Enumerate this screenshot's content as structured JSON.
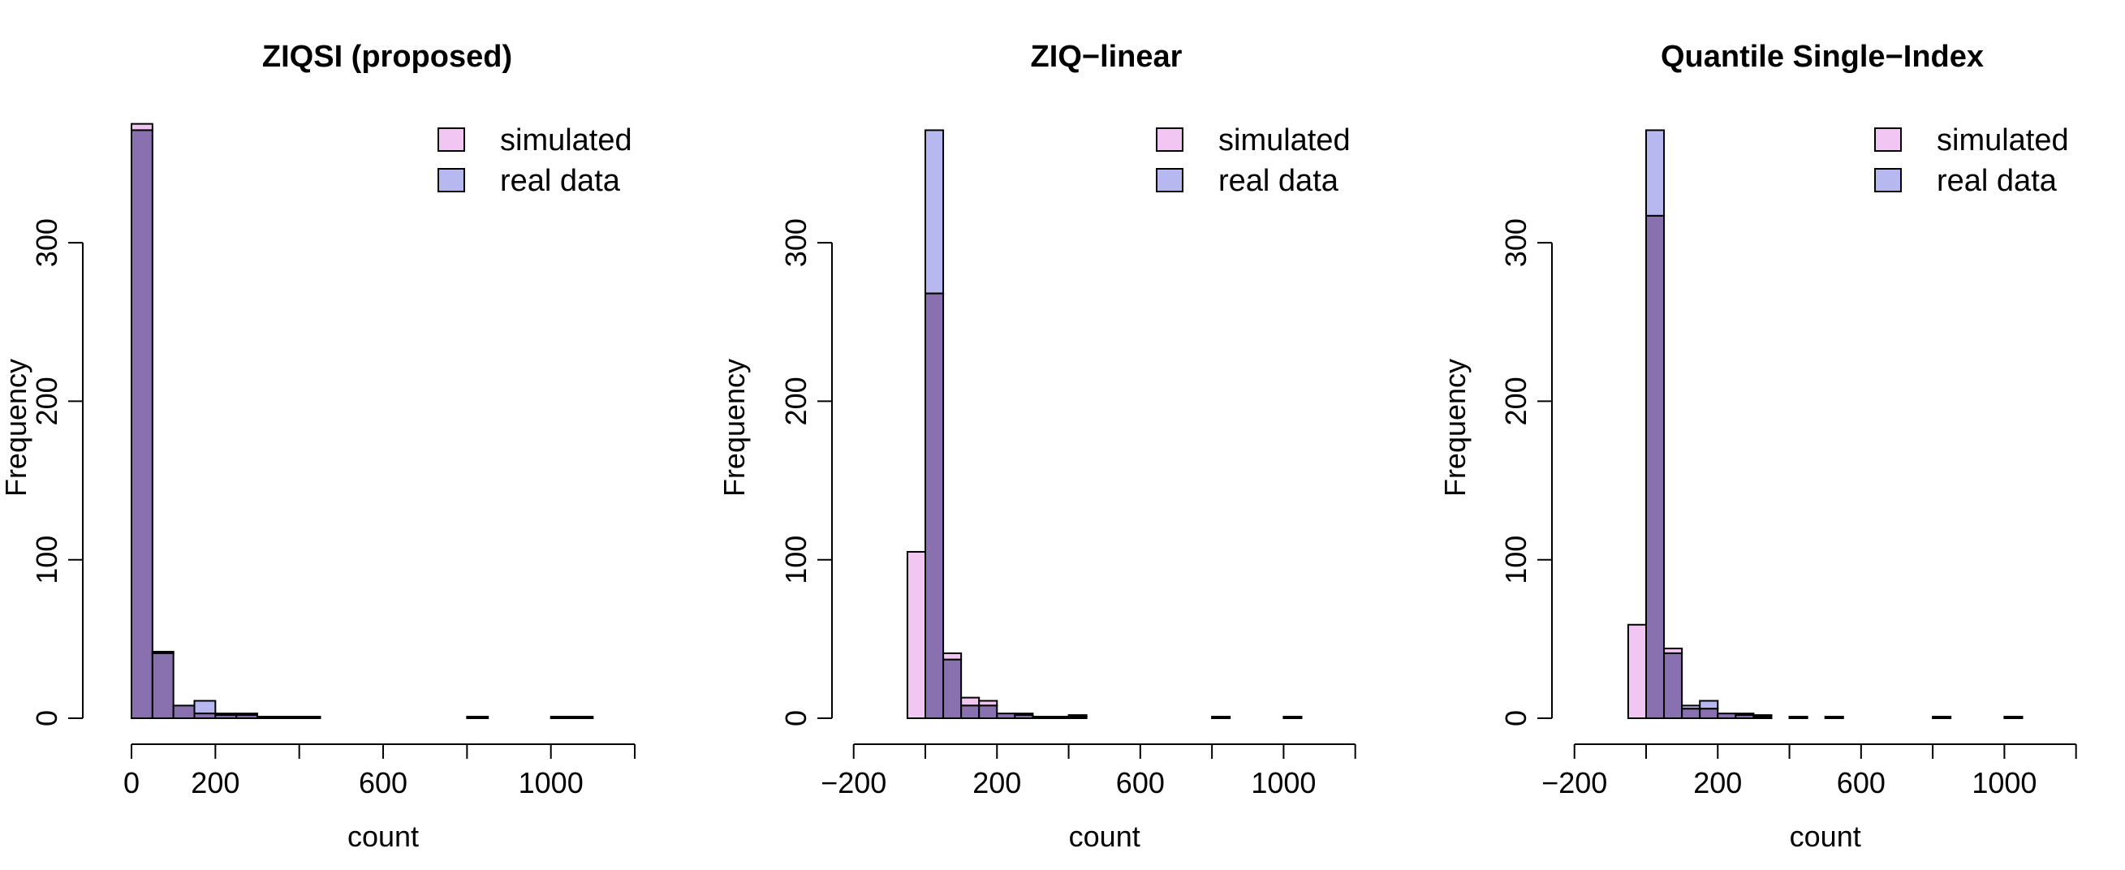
{
  "chart_data": [
    {
      "type": "bar",
      "title": "ZIQSI (proposed)",
      "xlabel": "count",
      "ylabel": "Frequency",
      "xlim": [
        0,
        1200
      ],
      "ylim": [
        0,
        375
      ],
      "xticks": [
        0,
        200,
        400,
        600,
        800,
        1000,
        1200
      ],
      "xtick_labels": [
        "0",
        "200",
        "",
        "600",
        "",
        "1000",
        ""
      ],
      "yticks": [
        0,
        100,
        200,
        300
      ],
      "ytick_labels": [
        "0",
        "100",
        "200",
        "300"
      ],
      "legend_position": "top-right",
      "bin_width": 50,
      "series": [
        {
          "name": "simulated",
          "color": "#f2c6f2",
          "bins": [
            [
              0,
              375
            ],
            [
              50,
              42
            ],
            [
              100,
              8
            ],
            [
              150,
              3
            ],
            [
              200,
              2
            ],
            [
              250,
              3
            ],
            [
              300,
              1
            ],
            [
              350,
              1
            ],
            [
              400,
              1
            ],
            [
              800,
              1
            ],
            [
              1000,
              1
            ],
            [
              1050,
              1
            ]
          ]
        },
        {
          "name": "real data",
          "color": "#b8b8f0",
          "bins": [
            [
              0,
              371
            ],
            [
              50,
              41
            ],
            [
              100,
              8
            ],
            [
              150,
              11
            ],
            [
              200,
              3
            ],
            [
              250,
              2
            ],
            [
              300,
              1
            ],
            [
              350,
              1
            ],
            [
              400,
              1
            ],
            [
              800,
              1
            ],
            [
              1000,
              1
            ],
            [
              1050,
              1
            ]
          ]
        }
      ]
    },
    {
      "type": "bar",
      "title": "ZIQ−linear",
      "xlabel": "count",
      "ylabel": "Frequency",
      "xlim": [
        -200,
        1200
      ],
      "ylim": [
        0,
        375
      ],
      "xticks": [
        -200,
        0,
        200,
        400,
        600,
        800,
        1000,
        1200
      ],
      "xtick_labels": [
        "−200",
        "",
        "200",
        "",
        "600",
        "",
        "1000",
        ""
      ],
      "yticks": [
        0,
        100,
        200,
        300
      ],
      "ytick_labels": [
        "0",
        "100",
        "200",
        "300"
      ],
      "legend_position": "top-right",
      "bin_width": 50,
      "series": [
        {
          "name": "simulated",
          "color": "#f2c6f2",
          "bins": [
            [
              -50,
              105
            ],
            [
              0,
              268
            ],
            [
              50,
              41
            ],
            [
              100,
              13
            ],
            [
              150,
              11
            ],
            [
              200,
              3
            ],
            [
              250,
              3
            ],
            [
              300,
              1
            ],
            [
              350,
              1
            ],
            [
              400,
              2
            ],
            [
              800,
              1
            ],
            [
              1000,
              1
            ]
          ]
        },
        {
          "name": "real data",
          "color": "#b8b8f0",
          "bins": [
            [
              0,
              371
            ],
            [
              50,
              37
            ],
            [
              100,
              8
            ],
            [
              150,
              8
            ],
            [
              200,
              3
            ],
            [
              250,
              2
            ],
            [
              300,
              1
            ],
            [
              350,
              1
            ],
            [
              400,
              1
            ],
            [
              800,
              1
            ],
            [
              1000,
              1
            ]
          ]
        }
      ]
    },
    {
      "type": "bar",
      "title": "Quantile Single−Index",
      "xlabel": "count",
      "ylabel": "Frequency",
      "xlim": [
        -200,
        1200
      ],
      "ylim": [
        0,
        375
      ],
      "xticks": [
        -200,
        0,
        200,
        400,
        600,
        800,
        1000,
        1200
      ],
      "xtick_labels": [
        "−200",
        "",
        "200",
        "",
        "600",
        "",
        "1000",
        ""
      ],
      "yticks": [
        0,
        100,
        200,
        300
      ],
      "ytick_labels": [
        "0",
        "100",
        "200",
        "300"
      ],
      "legend_position": "top-right",
      "bin_width": 50,
      "series": [
        {
          "name": "simulated",
          "color": "#f2c6f2",
          "bins": [
            [
              -50,
              59
            ],
            [
              0,
              317
            ],
            [
              50,
              44
            ],
            [
              100,
              6
            ],
            [
              150,
              6
            ],
            [
              200,
              3
            ],
            [
              250,
              3
            ],
            [
              300,
              2
            ],
            [
              400,
              1
            ],
            [
              500,
              1
            ],
            [
              800,
              1
            ],
            [
              1000,
              1
            ]
          ]
        },
        {
          "name": "real data",
          "color": "#b8b8f0",
          "bins": [
            [
              0,
              371
            ],
            [
              50,
              41
            ],
            [
              100,
              8
            ],
            [
              150,
              11
            ],
            [
              200,
              3
            ],
            [
              250,
              2
            ],
            [
              300,
              1
            ],
            [
              400,
              1
            ],
            [
              500,
              1
            ],
            [
              800,
              1
            ],
            [
              1000,
              1
            ]
          ]
        }
      ]
    }
  ]
}
